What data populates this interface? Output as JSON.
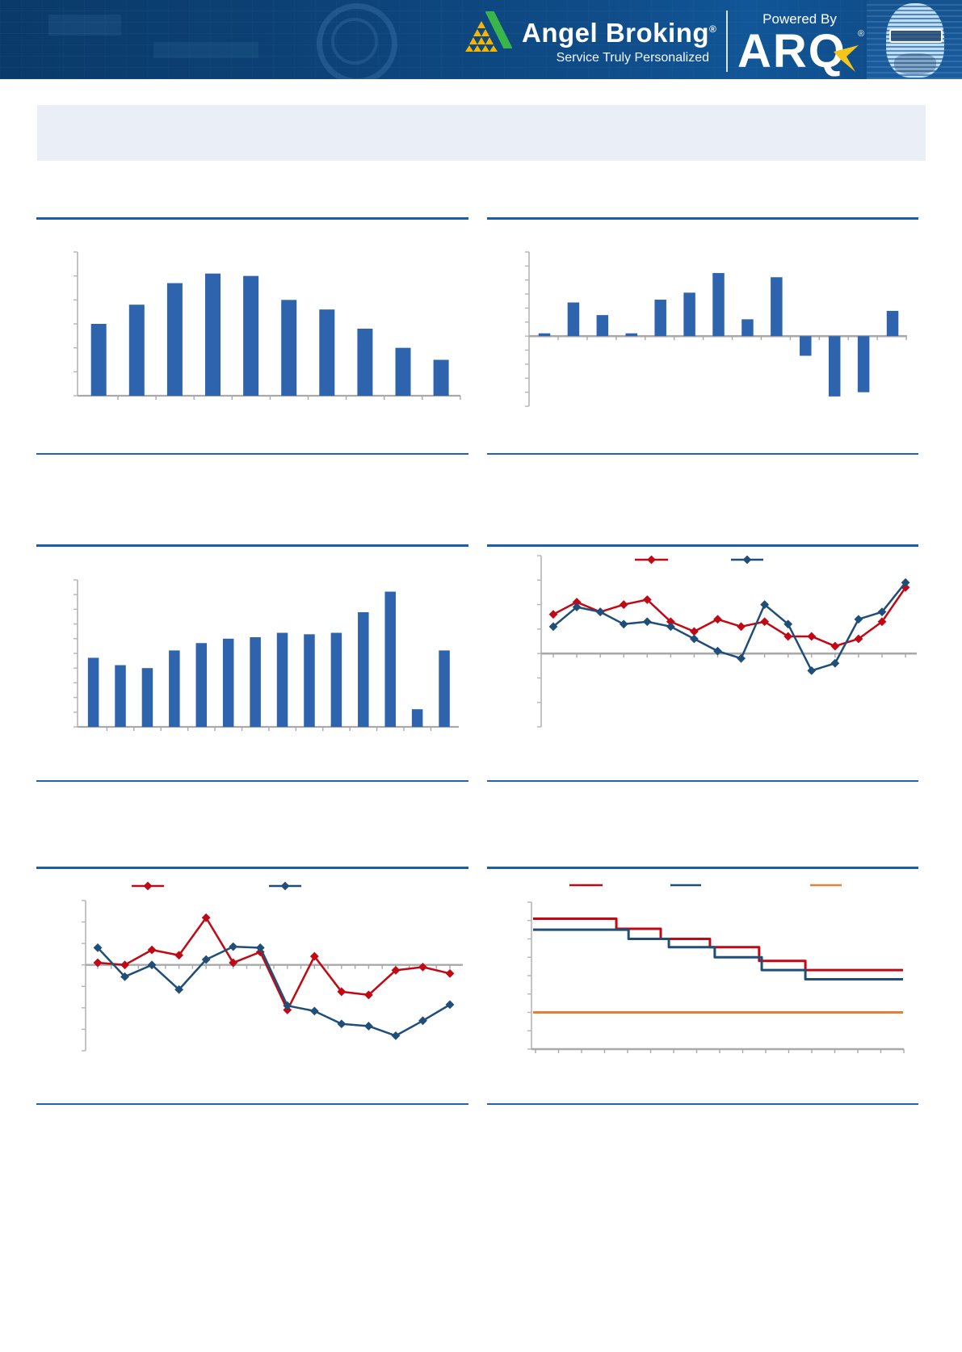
{
  "header": {
    "brand": "Angel Broking",
    "brand_reg": "®",
    "tagline": "Service Truly Personalized",
    "powered_by": "Powered By",
    "product": "ARQ",
    "product_reg": "®"
  },
  "colors": {
    "header_bg": "#0d4379",
    "rule_blue": "#1a5cad",
    "bar_blue": "#2e64ad",
    "line_red": "#c00914",
    "line_navy": "#1f4e79",
    "line_orange": "#e08139",
    "axis_gray": "#a9a9a9",
    "title_box_bg": "#eaeff7",
    "logo_yellow": "#f7b500",
    "logo_green": "#39b54a"
  },
  "chart_data": [
    {
      "id": "chart-1",
      "position": "row1-left",
      "type": "bar",
      "color": "#2e64ad",
      "values": [
        3.0,
        3.8,
        4.7,
        5.1,
        5.0,
        4.0,
        3.6,
        2.8,
        2.0,
        1.5
      ],
      "ylim": [
        0,
        6
      ],
      "ytick": 1,
      "note": "hump-shaped single-series column chart; axis tick marks only, no labels rendered in image"
    },
    {
      "id": "chart-2",
      "position": "row1-right",
      "type": "bar",
      "color": "#2e64ad",
      "values": [
        0.2,
        2.4,
        1.5,
        0.2,
        2.6,
        3.1,
        4.5,
        1.2,
        4.2,
        -1.4,
        -4.3,
        -4.0,
        1.8
      ],
      "ylim": [
        -5,
        6
      ],
      "ytick": 1,
      "note": "column chart with positive and negative values around a zero baseline; no labels rendered"
    },
    {
      "id": "chart-3",
      "position": "row2-left",
      "type": "bar",
      "color": "#2e64ad",
      "values": [
        4.7,
        4.2,
        4.0,
        5.2,
        5.7,
        6.0,
        6.1,
        6.4,
        6.3,
        6.4,
        7.8,
        9.2,
        1.2,
        5.2
      ],
      "ylim": [
        0,
        10
      ],
      "ytick": 1,
      "note": "rising column chart with sharp dip at 13th bar; no labels rendered"
    },
    {
      "id": "chart-4",
      "position": "row2-right",
      "type": "line",
      "series": [
        {
          "name": "series-red",
          "color": "#c00914",
          "marker": "diamond",
          "values": [
            1.6,
            2.1,
            1.7,
            2.0,
            2.2,
            1.3,
            0.9,
            1.4,
            1.1,
            1.3,
            0.7,
            0.7,
            0.3,
            0.6,
            1.3,
            2.7
          ]
        },
        {
          "name": "series-navy",
          "color": "#1f4e79",
          "marker": "diamond",
          "values": [
            1.1,
            1.9,
            1.7,
            1.2,
            1.3,
            1.1,
            0.6,
            0.1,
            -0.2,
            2.0,
            1.2,
            -0.7,
            -0.4,
            1.4,
            1.7,
            2.9
          ]
        }
      ],
      "ylim": [
        -3,
        4
      ],
      "ytick": 1,
      "legend_position": "top",
      "note": "two diamond-marker line series crossing zero; legend swatches visible but legend text not rendered"
    },
    {
      "id": "chart-5",
      "position": "row3-left",
      "type": "line",
      "series": [
        {
          "name": "series-red",
          "color": "#c00914",
          "marker": "diamond",
          "values": [
            0.1,
            0.0,
            0.7,
            0.45,
            2.2,
            0.1,
            0.6,
            -2.1,
            0.4,
            -1.25,
            -1.4,
            -0.25,
            -0.1,
            -0.4
          ]
        },
        {
          "name": "series-navy",
          "color": "#1f4e79",
          "marker": "diamond",
          "values": [
            0.8,
            -0.55,
            0.0,
            -1.15,
            0.25,
            0.85,
            0.8,
            -1.9,
            -2.15,
            -2.75,
            -2.85,
            -3.3,
            -2.6,
            -1.85
          ]
        }
      ],
      "ylim": [
        -4,
        3
      ],
      "ytick": 1,
      "legend_position": "top",
      "note": "two diamond-marker line series dropping below zero in second half; legend text not rendered"
    },
    {
      "id": "chart-6",
      "position": "row3-right",
      "type": "step",
      "series": [
        {
          "name": "series-red",
          "color": "#c00914",
          "steps": [
            [
              0,
              7.1
            ],
            [
              0.225,
              6.55
            ],
            [
              0.345,
              6.0
            ],
            [
              0.478,
              5.55
            ],
            [
              0.611,
              4.8
            ],
            [
              0.736,
              4.3
            ]
          ]
        },
        {
          "name": "series-navy",
          "color": "#1f4e79",
          "steps": [
            [
              0,
              6.5
            ],
            [
              0.258,
              6.0
            ],
            [
              0.367,
              5.55
            ],
            [
              0.491,
              5.0
            ],
            [
              0.618,
              4.3
            ],
            [
              0.736,
              3.8
            ]
          ]
        },
        {
          "name": "series-orange",
          "color": "#e08139",
          "steps": [
            [
              0,
              2.0
            ]
          ]
        }
      ],
      "ylim": [
        0,
        8
      ],
      "ytick": 1,
      "legend_position": "top",
      "note": "two descending step lines (red above navy) and one flat orange line; legend text not rendered"
    }
  ]
}
